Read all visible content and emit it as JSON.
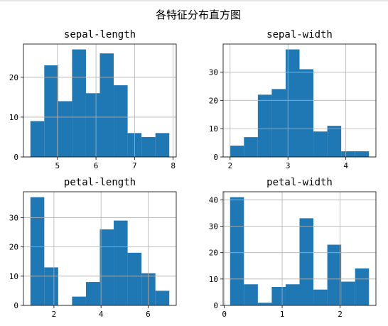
{
  "figure": {
    "title": "各特征分布直方图",
    "top_rule_color": "#cccccc"
  },
  "chart_data": [
    {
      "type": "bar",
      "title": "sepal-length",
      "xlabel": "",
      "ylabel": "",
      "bar_color": "#1f77b4",
      "grid": true,
      "xlim": [
        4.12,
        8.08
      ],
      "ylim": [
        0,
        28.35
      ],
      "xticks": [
        5,
        6,
        7,
        8
      ],
      "yticks": [
        0,
        10,
        20
      ],
      "bin_edges": [
        4.3,
        4.66,
        5.02,
        5.38,
        5.74,
        6.1,
        6.46,
        6.82,
        7.18,
        7.54,
        7.9
      ],
      "values": [
        9,
        23,
        14,
        27,
        16,
        26,
        18,
        6,
        5,
        6
      ]
    },
    {
      "type": "bar",
      "title": "sepal-width",
      "xlabel": "",
      "ylabel": "",
      "bar_color": "#1f77b4",
      "grid": true,
      "xlim": [
        1.88,
        4.52
      ],
      "ylim": [
        0,
        39.9
      ],
      "xticks": [
        2,
        3,
        4
      ],
      "yticks": [
        0,
        10,
        20,
        30
      ],
      "bin_edges": [
        2.0,
        2.24,
        2.48,
        2.72,
        2.96,
        3.2,
        3.44,
        3.68,
        3.92,
        4.16,
        4.4
      ],
      "values": [
        4,
        7,
        22,
        24,
        38,
        31,
        9,
        11,
        2,
        2
      ]
    },
    {
      "type": "bar",
      "title": "petal-length",
      "xlabel": "",
      "ylabel": "",
      "bar_color": "#1f77b4",
      "grid": true,
      "xlim": [
        0.705,
        7.195
      ],
      "ylim": [
        0,
        38.85
      ],
      "xticks": [
        2,
        4,
        6
      ],
      "yticks": [
        0,
        10,
        20,
        30
      ],
      "bin_edges": [
        1.0,
        1.59,
        2.18,
        2.77,
        3.36,
        3.95,
        4.54,
        5.13,
        5.72,
        6.31,
        6.9
      ],
      "values": [
        37,
        13,
        0,
        3,
        8,
        26,
        29,
        18,
        11,
        5
      ]
    },
    {
      "type": "bar",
      "title": "petal-width",
      "xlabel": "",
      "ylabel": "",
      "bar_color": "#1f77b4",
      "grid": true,
      "xlim": [
        -0.02,
        2.62
      ],
      "ylim": [
        0,
        43.05
      ],
      "xticks": [
        0,
        1,
        2
      ],
      "yticks": [
        0,
        10,
        20,
        30,
        40
      ],
      "bin_edges": [
        0.1,
        0.34,
        0.58,
        0.82,
        1.06,
        1.3,
        1.54,
        1.78,
        2.02,
        2.26,
        2.5
      ],
      "values": [
        41,
        8,
        1,
        7,
        8,
        33,
        6,
        23,
        9,
        14
      ]
    }
  ]
}
